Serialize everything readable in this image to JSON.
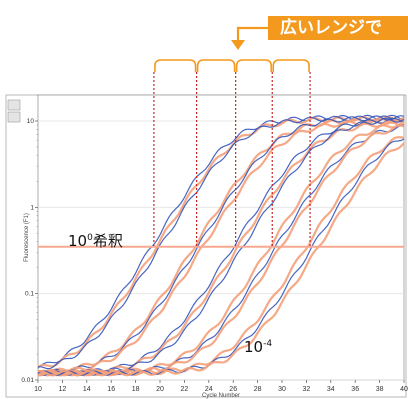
{
  "banner": {
    "text": "広いレンジで"
  },
  "chart_data": {
    "type": "line",
    "title": "",
    "xlabel": "Cycle Number",
    "ylabel": "Fluorescence (F1)",
    "x_ticks": [
      10,
      12,
      14,
      16,
      18,
      20,
      22,
      24,
      26,
      28,
      30,
      32,
      34,
      36,
      38,
      40
    ],
    "y_scale": "log",
    "y_ticks": [
      0.01,
      0.1,
      1,
      10
    ],
    "y_tick_labels": [
      "0.01",
      "0.1",
      "1",
      "10"
    ],
    "xlim": [
      10,
      40
    ],
    "ylim": [
      0.01,
      20
    ],
    "threshold": 0.35,
    "dilution_cycles": [
      19.5,
      23.0,
      26.2,
      29.2,
      32.3
    ],
    "label_top": {
      "base": "10",
      "exp": "0",
      "suffix": "希釈"
    },
    "label_bottom": {
      "base": "10",
      "exp": "-4"
    },
    "colors": {
      "accent": "#f39a1e",
      "series_a": "#3355bb",
      "series_b": "#f4a07a",
      "threshold": "#f7a890",
      "guide": "#cc2222"
    },
    "series": [
      {
        "ct": 19.3,
        "plateau": 11.0,
        "color": "#3355bb"
      },
      {
        "ct": 19.7,
        "plateau": 10.5,
        "color": "#f4a07a"
      },
      {
        "ct": 20.0,
        "plateau": 10.8,
        "color": "#3355bb"
      },
      {
        "ct": 22.8,
        "plateau": 10.2,
        "color": "#f4a07a"
      },
      {
        "ct": 23.1,
        "plateau": 10.9,
        "color": "#3355bb"
      },
      {
        "ct": 23.5,
        "plateau": 9.8,
        "color": "#f4a07a"
      },
      {
        "ct": 26.0,
        "plateau": 10.4,
        "color": "#3355bb"
      },
      {
        "ct": 26.4,
        "plateau": 9.6,
        "color": "#f4a07a"
      },
      {
        "ct": 26.8,
        "plateau": 10.6,
        "color": "#3355bb"
      },
      {
        "ct": 29.0,
        "plateau": 9.9,
        "color": "#f4a07a"
      },
      {
        "ct": 29.5,
        "plateau": 9.2,
        "color": "#3355bb"
      },
      {
        "ct": 29.9,
        "plateau": 9.5,
        "color": "#f4a07a"
      },
      {
        "ct": 32.0,
        "plateau": 8.8,
        "color": "#f4a07a"
      },
      {
        "ct": 32.5,
        "plateau": 9.4,
        "color": "#3355bb"
      },
      {
        "ct": 33.0,
        "plateau": 8.5,
        "color": "#f4a07a"
      }
    ]
  }
}
